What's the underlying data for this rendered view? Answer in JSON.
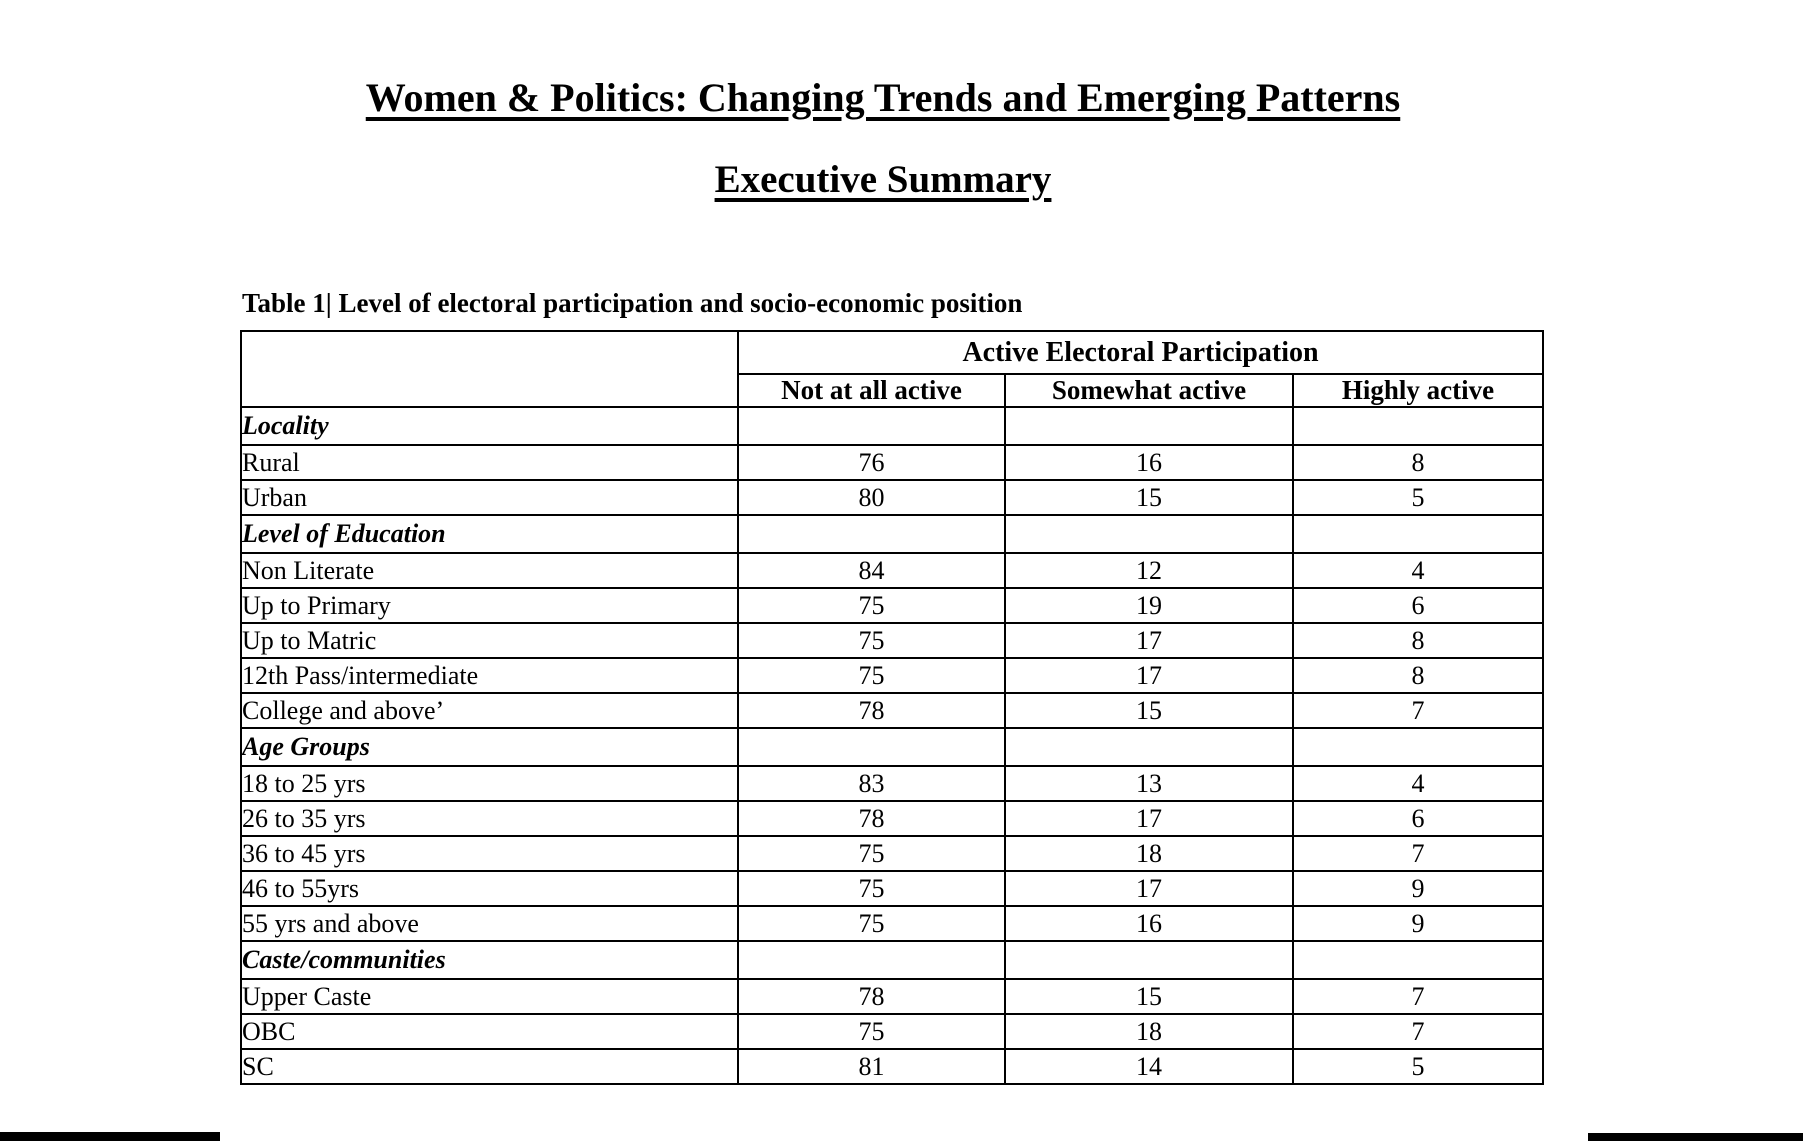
{
  "page": {
    "title": "Women & Politics: Changing Trends and Emerging Patterns",
    "subtitle": "Executive Summary"
  },
  "table": {
    "caption": "Table 1| Level of electoral participation and socio-economic position",
    "group_header": "Active Electoral Participation",
    "columns": [
      "Not at all active",
      "Somewhat active",
      "Highly active"
    ],
    "rows": [
      {
        "label": "Locality",
        "type": "section",
        "values": [
          "",
          "",
          ""
        ]
      },
      {
        "label": "Rural",
        "type": "data",
        "values": [
          "76",
          "16",
          "8"
        ]
      },
      {
        "label": "Urban",
        "type": "data",
        "values": [
          "80",
          "15",
          "5"
        ]
      },
      {
        "label": "Level of Education",
        "type": "section",
        "values": [
          "",
          "",
          ""
        ]
      },
      {
        "label": "Non Literate",
        "type": "data",
        "values": [
          "84",
          "12",
          "4"
        ]
      },
      {
        "label": "Up to Primary",
        "type": "data",
        "values": [
          "75",
          "19",
          "6"
        ]
      },
      {
        "label": "Up to Matric",
        "type": "data",
        "values": [
          "75",
          "17",
          "8"
        ]
      },
      {
        "label": "12th Pass/intermediate",
        "type": "data",
        "values": [
          "75",
          "17",
          "8"
        ]
      },
      {
        "label": "College and above’",
        "type": "data",
        "values": [
          "78",
          "15",
          "7"
        ]
      },
      {
        "label": "Age Groups",
        "type": "section",
        "values": [
          "",
          "",
          ""
        ]
      },
      {
        "label": "18 to 25 yrs",
        "type": "data",
        "values": [
          "83",
          "13",
          "4"
        ]
      },
      {
        "label": "26 to 35 yrs",
        "type": "data",
        "values": [
          "78",
          "17",
          "6"
        ]
      },
      {
        "label": "36 to 45 yrs",
        "type": "data",
        "values": [
          "75",
          "18",
          "7"
        ]
      },
      {
        "label": "46 to 55yrs",
        "type": "data",
        "values": [
          "75",
          "17",
          "9"
        ]
      },
      {
        "label": "55 yrs and above",
        "type": "data",
        "values": [
          "75",
          "16",
          "9"
        ]
      },
      {
        "label": "Caste/communities",
        "type": "section",
        "values": [
          "",
          "",
          ""
        ]
      },
      {
        "label": "Upper Caste",
        "type": "data",
        "values": [
          "78",
          "15",
          "7"
        ]
      },
      {
        "label": "OBC",
        "type": "data",
        "values": [
          "75",
          "18",
          "7"
        ]
      },
      {
        "label": "SC",
        "type": "data",
        "values": [
          "81",
          "14",
          "5"
        ]
      }
    ]
  },
  "colors": {
    "text": "#000000",
    "background": "#ffffff",
    "bottom_bars": "#000000"
  }
}
